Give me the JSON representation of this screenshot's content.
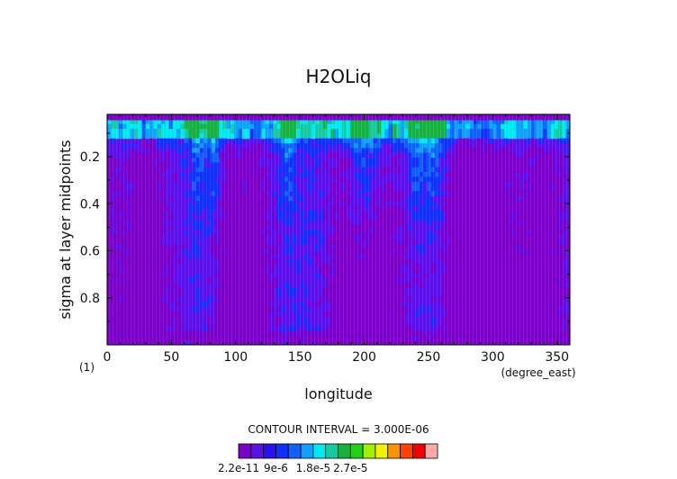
{
  "chart_data": {
    "type": "heatmap",
    "title": "H2OLiq",
    "xlabel": "longitude",
    "ylabel": "sigma at layer midpoints",
    "x_units": "(degree_east)",
    "corner_label": "(1)",
    "xlim": [
      0,
      360
    ],
    "ylim": [
      1.0,
      0.02
    ],
    "x_ticks": [
      0,
      50,
      100,
      150,
      200,
      250,
      300,
      350
    ],
    "x_tick_labels": [
      "0",
      "50",
      "100",
      "150",
      "200",
      "250",
      "300",
      "350"
    ],
    "y_ticks": [
      0.2,
      0.4,
      0.6,
      0.8
    ],
    "y_tick_labels": [
      "0.2",
      "0.4",
      "0.6",
      "0.8"
    ],
    "contour_interval_text": "CONTOUR INTERVAL = 3.000E-06",
    "colorbar": {
      "colors": [
        "#7a00c8",
        "#5a10e8",
        "#2a10f0",
        "#1030ff",
        "#1060ff",
        "#10a0ff",
        "#00e8f0",
        "#18c8a0",
        "#18b040",
        "#22d018",
        "#a0f000",
        "#f0f000",
        "#ff9000",
        "#ff4000",
        "#f40000",
        "#ffa8a8"
      ],
      "tick_labels": [
        "2.2e-11",
        "9e-6",
        "1.8e-5",
        "2.7e-5"
      ]
    },
    "description_levels": [
      2.2e-11,
      3e-06,
      6e-06,
      9e-06,
      1.2e-05,
      1.5e-05,
      1.8e-05,
      2.1e-05,
      2.4e-05,
      2.7e-05,
      3e-05,
      3.3e-05,
      3.6e-05,
      3.9e-05,
      4.2e-05,
      4.5e-05,
      4.8e-05
    ]
  }
}
